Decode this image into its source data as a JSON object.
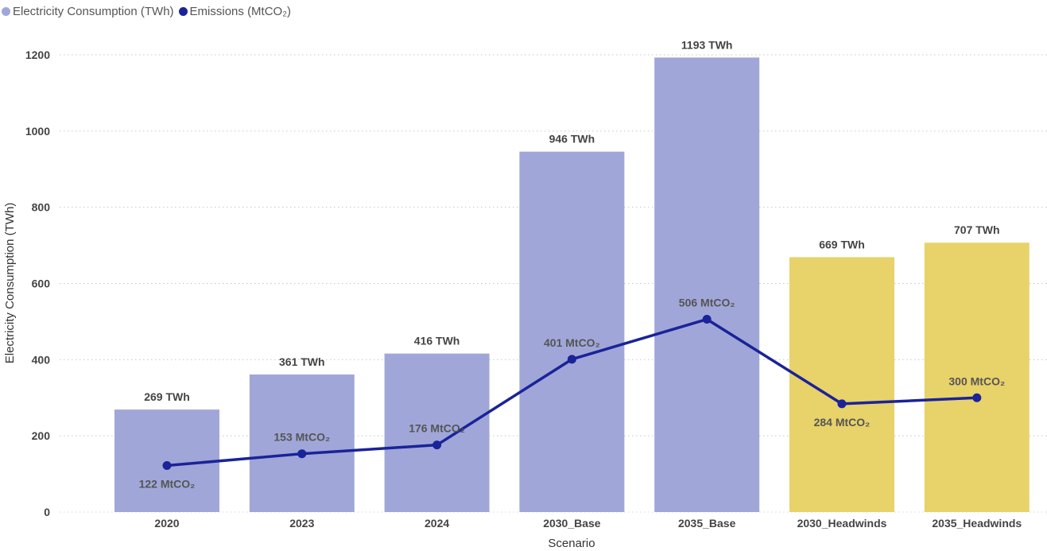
{
  "legend": [
    {
      "label": "Electricity Consumption (TWh)",
      "color": "#a0a7d8"
    },
    {
      "label": "Emissions (MtCO₂)",
      "color": "#1a2399"
    }
  ],
  "chart_data": {
    "type": "bar",
    "categories": [
      "2020",
      "2023",
      "2024",
      "2030_Base",
      "2035_Base",
      "2030_Headwinds",
      "2035_Headwinds"
    ],
    "series": [
      {
        "name": "Electricity Consumption (TWh)",
        "type": "bar",
        "values": [
          269,
          361,
          416,
          946,
          1193,
          669,
          707
        ],
        "labels": [
          "269 TWh",
          "361 TWh",
          "416 TWh",
          "946 TWh",
          "1193 TWh",
          "669 TWh",
          "707 TWh"
        ],
        "colors": [
          "#a0a7d8",
          "#a0a7d8",
          "#a0a7d8",
          "#a0a7d8",
          "#a0a7d8",
          "#e8d26a",
          "#e8d26a"
        ]
      },
      {
        "name": "Emissions (MtCO₂)",
        "type": "line",
        "color": "#1a2399",
        "values": [
          122,
          153,
          176,
          401,
          506,
          284,
          300
        ],
        "labels": [
          "122 MtCO₂",
          "153 MtCO₂",
          "176 MtCO₂",
          "401 MtCO₂",
          "506 MtCO₂",
          "284 MtCO₂",
          "300 MtCO₂"
        ]
      }
    ],
    "xlabel": "Scenario",
    "ylabel": "Electricity Consumption (TWh)",
    "ylim": [
      0,
      1200
    ],
    "yticks": [
      0,
      200,
      400,
      600,
      800,
      1000,
      1200
    ],
    "grid": true,
    "legend_position": "top-left"
  }
}
